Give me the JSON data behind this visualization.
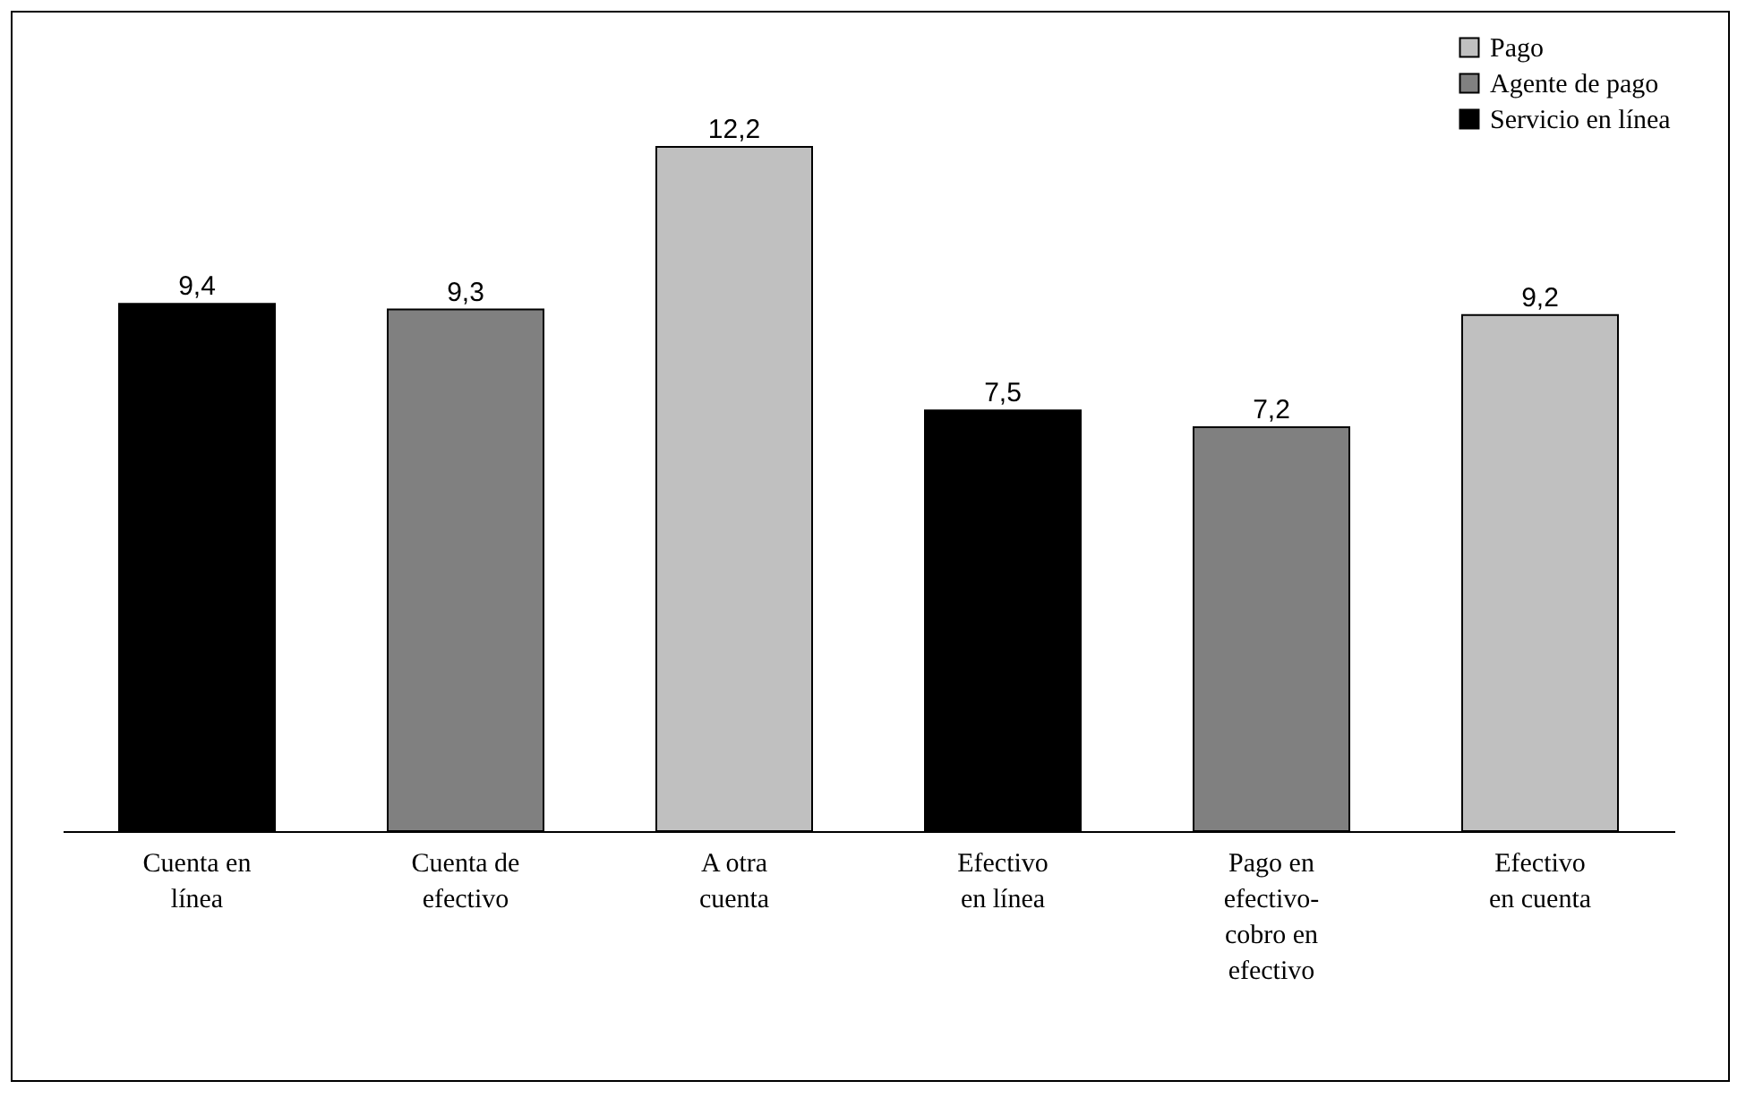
{
  "chart_data": {
    "type": "bar",
    "categories": [
      "Cuenta en línea",
      "Cuenta de efectivo",
      "A otra cuenta",
      "Efectivo en línea",
      "Pago en efectivo-cobro en efectivo",
      "Efectivo en cuenta"
    ],
    "series": [
      {
        "name": "Pago",
        "color": "#c0c0c0",
        "values": [
          null,
          null,
          12.2,
          null,
          null,
          9.2
        ],
        "value_labels": [
          null,
          null,
          "12,2",
          null,
          null,
          "9,2"
        ]
      },
      {
        "name": "Agente de pago",
        "color": "#808080",
        "values": [
          null,
          9.3,
          null,
          null,
          7.2,
          null
        ],
        "value_labels": [
          null,
          "9,3",
          null,
          null,
          "7,2",
          null
        ]
      },
      {
        "name": "Servicio en línea",
        "color": "#000000",
        "values": [
          9.4,
          null,
          null,
          7.5,
          null,
          null
        ],
        "value_labels": [
          "9,4",
          null,
          null,
          "7,5",
          null,
          null
        ]
      }
    ],
    "legend": "top right"
  }
}
